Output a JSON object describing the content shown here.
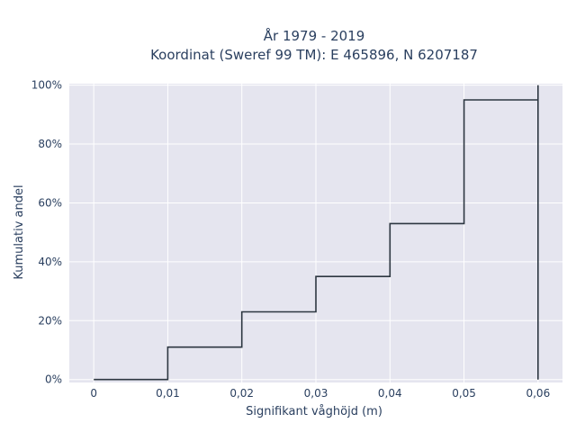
{
  "chart_data": {
    "type": "line",
    "line_shape": "step",
    "title_lines": [
      "År 1979 - 2019",
      "Koordinat (Sweref 99 TM): E 465896, N 6207187"
    ],
    "xlabel": "Signifikant våghöjd (m)",
    "ylabel": "Kumulativ andel",
    "x_ticks": [
      0,
      0.01,
      0.02,
      0.03,
      0.04,
      0.05,
      0.06
    ],
    "x_tick_labels": [
      "0",
      "0,01",
      "0,02",
      "0,03",
      "0,04",
      "0,05",
      "0,06"
    ],
    "y_ticks": [
      0,
      0.2,
      0.4,
      0.6,
      0.8,
      1.0
    ],
    "y_tick_labels": [
      "0%",
      "20%",
      "40%",
      "60%",
      "80%",
      "100%"
    ],
    "xlim": [
      -0.0033,
      0.0633
    ],
    "ylim": [
      -0.01,
      1.005
    ],
    "grid": true,
    "colors": {
      "plot_bg": "#e5e5ef",
      "grid": "#ffffff",
      "line": "#2d3741",
      "text": "#2a3f5f"
    },
    "series": [
      {
        "x": [
          0,
          0.01,
          0.01,
          0.02,
          0.02,
          0.03,
          0.03,
          0.04,
          0.04,
          0.05,
          0.05,
          0.06,
          0.06,
          0.06
        ],
        "y": [
          0,
          0,
          0.11,
          0.11,
          0.23,
          0.23,
          0.35,
          0.35,
          0.53,
          0.53,
          0.95,
          0.95,
          1.0,
          0
        ]
      }
    ]
  }
}
